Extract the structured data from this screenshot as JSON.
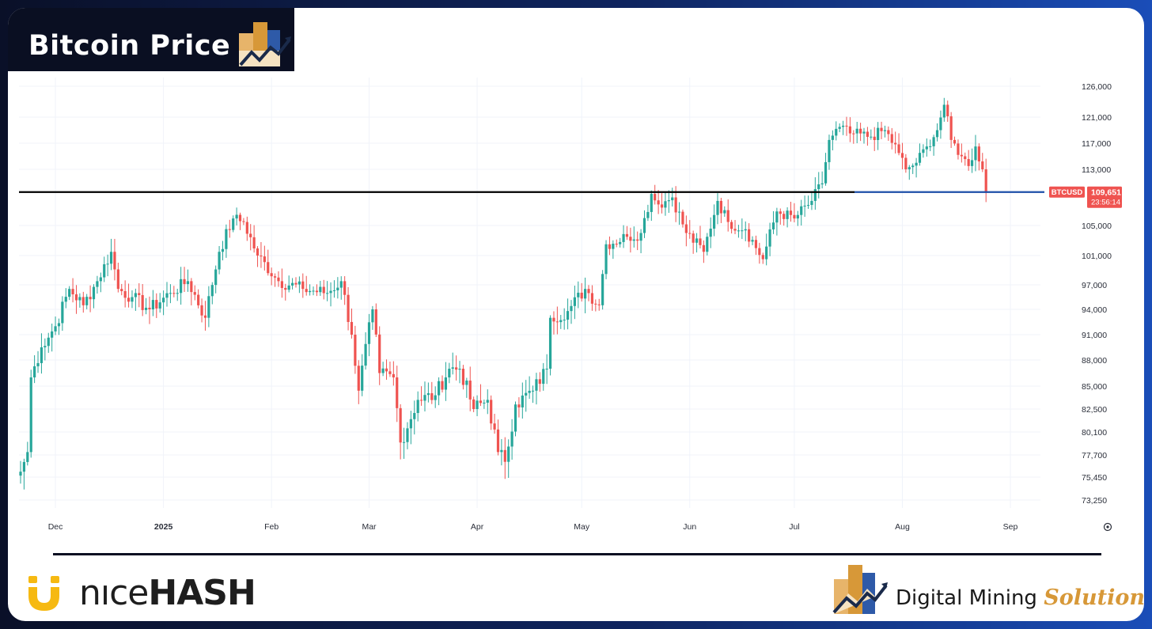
{
  "header": {
    "title": "Bitcoin Price"
  },
  "chart_data": {
    "type": "candlestick",
    "symbol": "BTCUSD",
    "last_price": "109,651",
    "countdown": "23:56:14",
    "support_level": 109651,
    "y_ticks": [
      "126,000",
      "121,000",
      "117,000",
      "113,000",
      "105,000",
      "101,000",
      "97,000",
      "94,000",
      "91,000",
      "88,000",
      "85,000",
      "82,500",
      "80,100",
      "77,700",
      "75,450",
      "73,250"
    ],
    "x_ticks": [
      "Dec",
      "2025",
      "Feb",
      "Mar",
      "Apr",
      "May",
      "Jun",
      "Jul",
      "Aug",
      "Sep"
    ],
    "x_period": "2024-11-21 to 2025-08-25",
    "close_anchors": [
      [
        "2024-11-21",
        76000
      ],
      [
        "2024-11-23",
        78000
      ],
      [
        "2024-11-24",
        86000
      ],
      [
        "2024-11-27",
        89500
      ],
      [
        "2024-12-01",
        92000
      ],
      [
        "2024-12-05",
        96500
      ],
      [
        "2024-12-09",
        94500
      ],
      [
        "2024-12-13",
        97500
      ],
      [
        "2024-12-17",
        101500
      ],
      [
        "2024-12-19",
        96500
      ],
      [
        "2024-12-23",
        95500
      ],
      [
        "2024-12-28",
        94000
      ],
      [
        "2025-01-03",
        96000
      ],
      [
        "2025-01-08",
        97500
      ],
      [
        "2025-01-13",
        93000
      ],
      [
        "2025-01-17",
        101500
      ],
      [
        "2025-01-21",
        106000
      ],
      [
        "2025-01-24",
        105500
      ],
      [
        "2025-01-28",
        101000
      ],
      [
        "2025-02-03",
        97500
      ],
      [
        "2025-02-10",
        96500
      ],
      [
        "2025-02-17",
        96000
      ],
      [
        "2025-02-21",
        97500
      ],
      [
        "2025-02-24",
        91000
      ],
      [
        "2025-02-26",
        84500
      ],
      [
        "2025-03-02",
        94000
      ],
      [
        "2025-03-04",
        86500
      ],
      [
        "2025-03-08",
        86000
      ],
      [
        "2025-03-10",
        79000
      ],
      [
        "2025-03-15",
        83500
      ],
      [
        "2025-03-20",
        84000
      ],
      [
        "2025-03-24",
        87000
      ],
      [
        "2025-03-27",
        87000
      ],
      [
        "2025-03-31",
        82500
      ],
      [
        "2025-04-04",
        83500
      ],
      [
        "2025-04-07",
        78000
      ],
      [
        "2025-04-09",
        77000
      ],
      [
        "2025-04-12",
        83000
      ],
      [
        "2025-04-17",
        84500
      ],
      [
        "2025-04-21",
        87000
      ],
      [
        "2025-04-22",
        93000
      ],
      [
        "2025-04-27",
        93800
      ],
      [
        "2025-05-02",
        96500
      ],
      [
        "2025-05-06",
        94500
      ],
      [
        "2025-05-08",
        102500
      ],
      [
        "2025-05-14",
        103500
      ],
      [
        "2025-05-18",
        104000
      ],
      [
        "2025-05-21",
        109500
      ],
      [
        "2025-05-23",
        108000
      ],
      [
        "2025-05-27",
        109000
      ],
      [
        "2025-05-31",
        104000
      ],
      [
        "2025-06-05",
        101500
      ],
      [
        "2025-06-09",
        108500
      ],
      [
        "2025-06-12",
        105500
      ],
      [
        "2025-06-17",
        104500
      ],
      [
        "2025-06-22",
        100500
      ],
      [
        "2025-06-26",
        107000
      ],
      [
        "2025-07-01",
        106000
      ],
      [
        "2025-07-06",
        108500
      ],
      [
        "2025-07-09",
        111000
      ],
      [
        "2025-07-11",
        117500
      ],
      [
        "2025-07-14",
        119500
      ],
      [
        "2025-07-17",
        118500
      ],
      [
        "2025-07-23",
        118000
      ],
      [
        "2025-07-27",
        119000
      ],
      [
        "2025-07-31",
        115500
      ],
      [
        "2025-08-02",
        113000
      ],
      [
        "2025-08-05",
        114000
      ],
      [
        "2025-08-08",
        116500
      ],
      [
        "2025-08-11",
        119000
      ],
      [
        "2025-08-13",
        123000
      ],
      [
        "2025-08-15",
        117500
      ],
      [
        "2025-08-18",
        115000
      ],
      [
        "2025-08-20",
        113500
      ],
      [
        "2025-08-22",
        116500
      ],
      [
        "2025-08-24",
        113000
      ],
      [
        "2025-08-25",
        109651
      ]
    ]
  },
  "footer": {
    "nicehash_light": "nıce",
    "nicehash_bold": "HASH",
    "dms_part1": "Digital Mining ",
    "dms_part2": "Solutions"
  },
  "colors": {
    "up": "#26a69a",
    "down": "#ef5350",
    "support_line_left": "#000000",
    "support_line_right": "#1e4fa8",
    "price_label": "#ef5350",
    "brand_orange": "#d79838",
    "brand_blue": "#2e5aa8"
  }
}
